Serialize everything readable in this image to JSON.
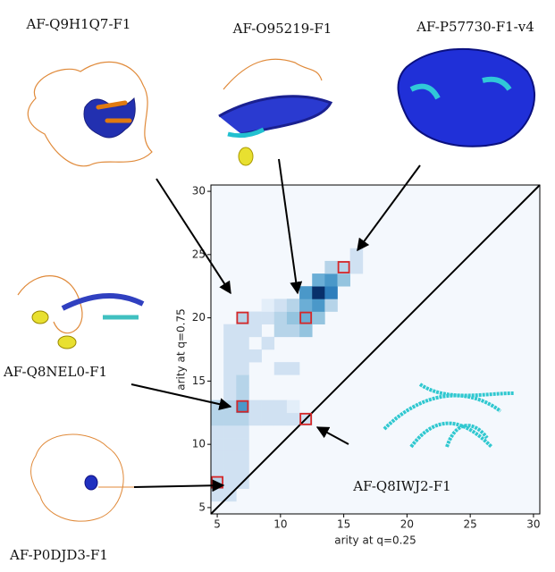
{
  "chart_data": {
    "type": "heatmap",
    "x_label": "arity at q=0.25",
    "y_label": "arity at q=0.75",
    "xlim": [
      4.5,
      30.5
    ],
    "ylim": [
      4.5,
      30.5
    ],
    "xticks": [
      5,
      10,
      15,
      20,
      25,
      30
    ],
    "yticks": [
      5,
      10,
      15,
      20,
      25,
      30
    ],
    "background_color": "#f4f8fd",
    "cells": {
      "x": [
        5,
        5,
        5,
        5,
        5,
        5,
        5,
        5,
        6,
        6,
        6,
        6,
        6,
        6,
        6,
        6,
        6,
        6,
        6,
        6,
        6,
        6,
        7,
        7,
        7,
        7,
        7,
        7,
        7,
        7,
        7,
        7,
        7,
        7,
        7,
        7,
        8,
        9,
        10,
        11,
        12,
        8,
        9,
        10,
        11,
        8,
        9,
        10,
        11,
        8,
        8,
        9,
        10,
        11,
        10,
        11,
        9,
        10,
        11,
        12,
        13,
        11,
        12,
        13,
        14,
        12,
        13,
        14,
        12,
        13,
        14,
        15,
        14,
        15,
        16,
        16
      ],
      "y": [
        6,
        7,
        8,
        9,
        10,
        11,
        12,
        13,
        6,
        7,
        8,
        9,
        10,
        11,
        12,
        13,
        14,
        15,
        16,
        17,
        18,
        19,
        7,
        8,
        9,
        10,
        11,
        12,
        13,
        14,
        15,
        16,
        17,
        18,
        19,
        20,
        12,
        12,
        12,
        12,
        12,
        13,
        13,
        13,
        13,
        17,
        18,
        19,
        19,
        19,
        20,
        20,
        20,
        20,
        16,
        16,
        21,
        21,
        21,
        20,
        20,
        21,
        21,
        21,
        21,
        22,
        22,
        22,
        19,
        23,
        23,
        23,
        24,
        24,
        24,
        25
      ],
      "values": [
        2,
        3,
        2,
        2,
        2,
        2,
        3,
        3,
        2,
        2,
        2,
        2,
        2,
        2,
        3,
        3,
        2,
        2,
        2,
        2,
        2,
        2,
        2,
        2,
        2,
        2,
        2,
        3,
        6,
        3,
        3,
        2,
        2,
        2,
        2,
        3,
        2,
        2,
        2,
        2,
        2,
        2,
        2,
        2,
        1,
        2,
        2,
        3,
        3,
        2,
        2,
        2,
        3,
        4,
        2,
        2,
        1,
        2,
        3,
        5,
        4,
        3,
        5,
        6,
        3,
        6,
        10,
        7,
        4,
        5,
        6,
        4,
        3,
        3,
        2,
        2
      ]
    },
    "marker_color": "#d62728",
    "markers": [
      {
        "x": 5,
        "y": 7
      },
      {
        "x": 7,
        "y": 13
      },
      {
        "x": 7,
        "y": 20
      },
      {
        "x": 12,
        "y": 12
      },
      {
        "x": 12,
        "y": 20
      },
      {
        "x": 15,
        "y": 24
      }
    ],
    "labels": [
      "AF-Q9H1Q7-F1",
      "AF-O95219-F1",
      "AF-P57730-F1-v4",
      "AF-Q8NEL0-F1",
      "AF-Q8IWJ2-F1",
      "AF-P0DJD3-F1"
    ]
  }
}
